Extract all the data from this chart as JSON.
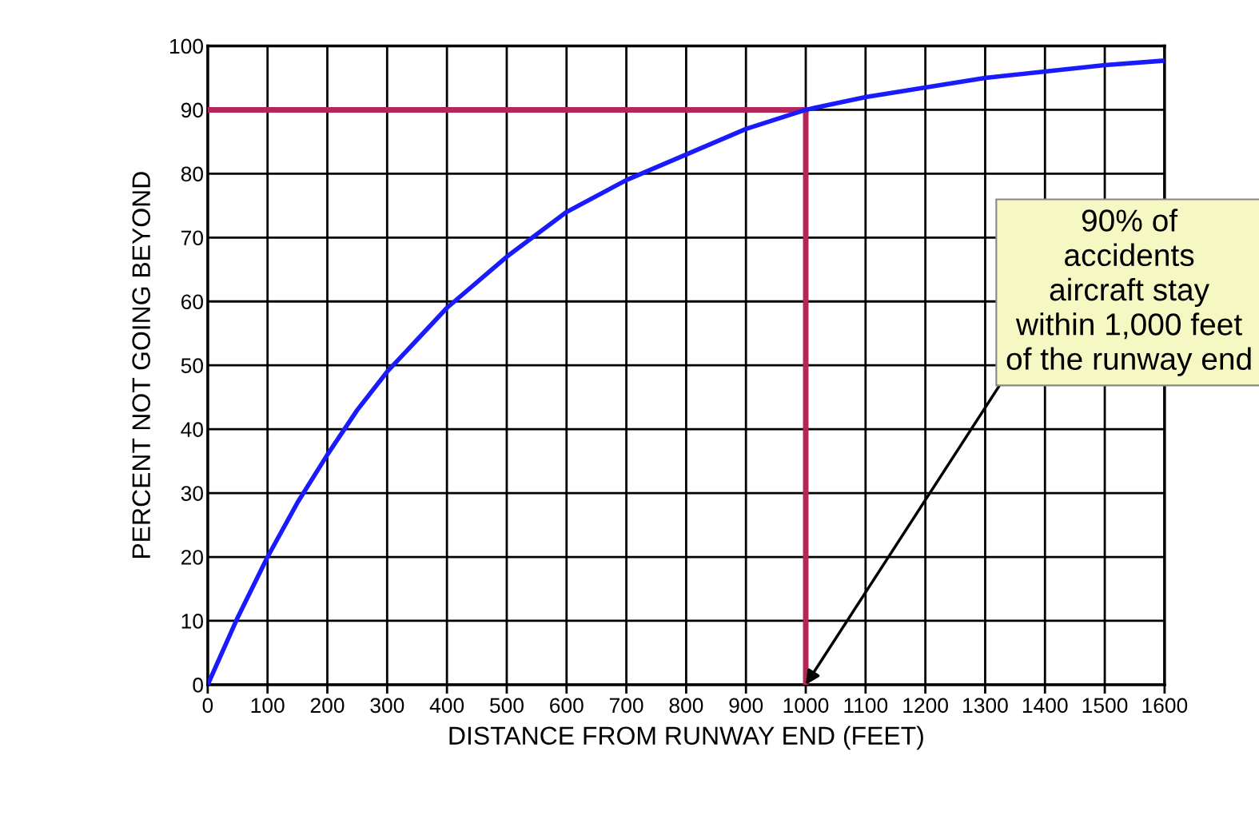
{
  "chart_data": {
    "type": "line",
    "xlabel": "DISTANCE FROM RUNWAY END (FEET)",
    "ylabel": "PERCENT NOT GOING BEYOND",
    "x": [
      0,
      50,
      100,
      150,
      200,
      250,
      300,
      400,
      500,
      600,
      700,
      800,
      900,
      1000,
      1100,
      1200,
      1300,
      1400,
      1500,
      1600
    ],
    "series": [
      {
        "color": "#1a1aff",
        "values": [
          0,
          10.5,
          20,
          28.5,
          36,
          43,
          49,
          59,
          67,
          74,
          79,
          83,
          87,
          90,
          92,
          93.5,
          95,
          96,
          97,
          97.7
        ]
      }
    ],
    "xlim": [
      0,
      1600
    ],
    "ylim": [
      0,
      100
    ],
    "xticks": [
      0,
      100,
      200,
      300,
      400,
      500,
      600,
      700,
      800,
      900,
      1000,
      1100,
      1200,
      1300,
      1400,
      1500,
      1600
    ],
    "yticks": [
      0,
      10,
      20,
      30,
      40,
      50,
      60,
      70,
      80,
      90,
      100
    ],
    "grid": true,
    "marker": "none",
    "line_style": "solid",
    "ref_lines": [
      {
        "axis": "y",
        "value": 90,
        "color": "#b5245a"
      },
      {
        "axis": "x",
        "value": 1000,
        "color": "#b5245a"
      }
    ],
    "annotations": [
      {
        "text": "90% of\naccidents\naircraft stay\nwithin 1,000 feet\nof the runway end",
        "x": 1000,
        "y": 0
      }
    ]
  }
}
